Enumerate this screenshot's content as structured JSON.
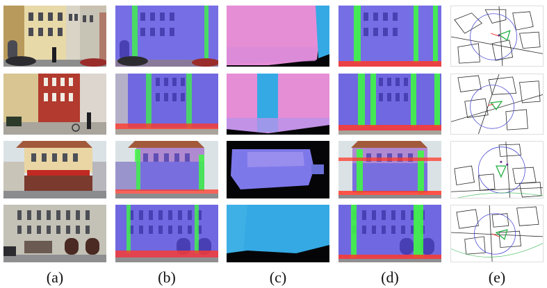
{
  "figure": {
    "column_labels": [
      "(a)",
      "(b)",
      "(c)",
      "(d)",
      "(e)"
    ],
    "rows": 4,
    "panels": {
      "a": "street photograph",
      "b": "segmentation overlay",
      "c": "normal / depth prediction",
      "d": "refined facade overlay",
      "e": "map with camera position"
    },
    "colors": {
      "facade": "#7b6cf0",
      "ground": "#ff3a2a",
      "separator": "#3cff3c",
      "pink": "#e58ed6",
      "cyan": "#35a9e4",
      "map_circle": "#4b4bd6",
      "camera": "#2bb34a"
    }
  }
}
